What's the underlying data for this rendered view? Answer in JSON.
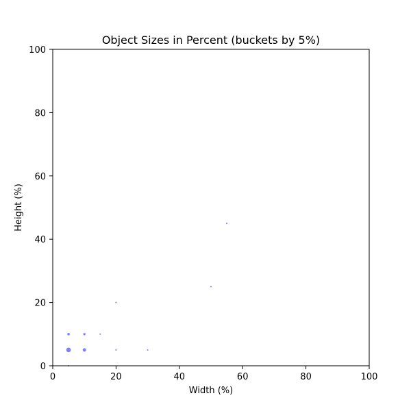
{
  "chart_data": {
    "type": "scatter",
    "title": "Object Sizes in Percent  (buckets by 5%)",
    "xlabel": "Width (%)",
    "ylabel": "Height (%)",
    "xlim": [
      0,
      100
    ],
    "ylim": [
      0,
      100
    ],
    "xticks": [
      0,
      20,
      40,
      60,
      80,
      100
    ],
    "yticks": [
      0,
      20,
      40,
      60,
      80,
      100
    ],
    "grid": false,
    "legend": "none",
    "marker_color": "#0000ff",
    "marker_alpha": 0.5,
    "points": [
      {
        "x": 5,
        "y": 0,
        "count": 1
      },
      {
        "x": 5,
        "y": 5,
        "count": 20
      },
      {
        "x": 5,
        "y": 10,
        "count": 6
      },
      {
        "x": 10,
        "y": 5,
        "count": 11
      },
      {
        "x": 10,
        "y": 10,
        "count": 5
      },
      {
        "x": 15,
        "y": 10,
        "count": 2
      },
      {
        "x": 20,
        "y": 5,
        "count": 2
      },
      {
        "x": 20,
        "y": 20,
        "count": 2
      },
      {
        "x": 30,
        "y": 5,
        "count": 2
      },
      {
        "x": 50,
        "y": 25,
        "count": 2
      },
      {
        "x": 55,
        "y": 45,
        "count": 2
      }
    ]
  }
}
